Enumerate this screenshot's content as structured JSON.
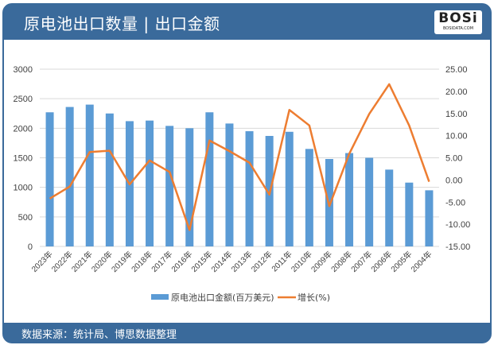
{
  "header": {
    "title": "原电池出口数量 | 出口金额",
    "logo_text": "BOSi",
    "logo_sub": "BOSIDATA.COM"
  },
  "footer": {
    "source": "数据来源：统计局、博思数据整理"
  },
  "colors": {
    "bar": "#5b9bd5",
    "line": "#ed7d31",
    "frame": "#3a6a9b"
  },
  "chart_data": {
    "type": "bar+line",
    "categories": [
      "2023年",
      "2022年",
      "2021年",
      "2020年",
      "2019年",
      "2018年",
      "2017年",
      "2016年",
      "2015年",
      "2014年",
      "2013年",
      "2012年",
      "2011年",
      "2010年",
      "2009年",
      "2008年",
      "2007年",
      "2006年",
      "2005年",
      "2004年"
    ],
    "series": [
      {
        "name": "原电池出口金额(百万美元)",
        "type": "bar",
        "axis": "left",
        "values": [
          2270,
          2360,
          2400,
          2250,
          2120,
          2130,
          2040,
          2000,
          2270,
          2080,
          1950,
          1870,
          1940,
          1650,
          1480,
          1580,
          1500,
          1300,
          1080,
          950
        ]
      },
      {
        "name": "增长(%)",
        "type": "line",
        "axis": "right",
        "values": [
          -4.2,
          -1.5,
          6.3,
          6.6,
          -1.0,
          4.4,
          1.8,
          -11.3,
          8.9,
          6.5,
          3.9,
          -3.3,
          15.8,
          12.3,
          -5.9,
          5.9,
          14.9,
          21.6,
          12.3,
          -0.4
        ]
      }
    ],
    "left_axis": {
      "range": [
        0,
        3000
      ],
      "ticks": [
        "0",
        "500",
        "1000",
        "1500",
        "2000",
        "2500",
        "3000"
      ]
    },
    "right_axis": {
      "range": [
        -15,
        25
      ],
      "ticks": [
        "-15.00",
        "-10.00",
        "-5.00",
        "0.00",
        "5.00",
        "10.00",
        "15.00",
        "20.00",
        "25.00"
      ]
    },
    "grid": true,
    "legend": "bottom"
  }
}
